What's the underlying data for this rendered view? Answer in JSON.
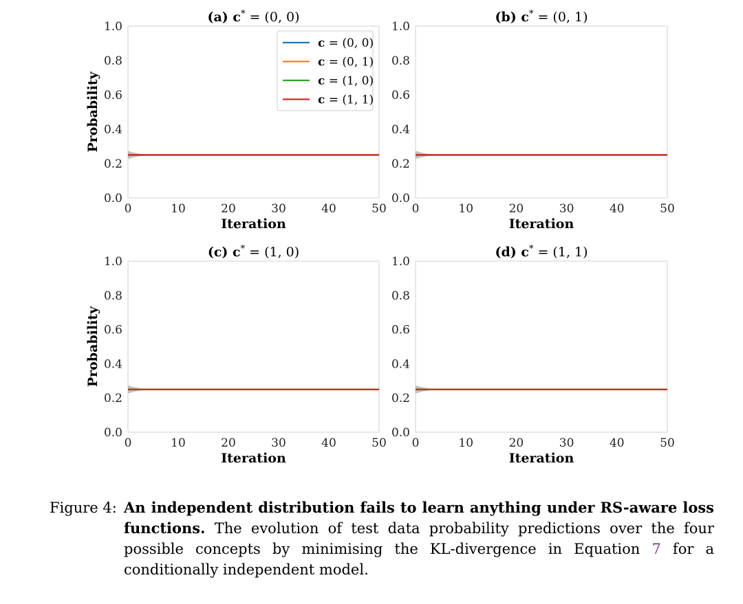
{
  "chart_data": [
    {
      "type": "line",
      "title": "(a) c* = (0, 0)",
      "title_parts": {
        "label": "(a)",
        "var": "c",
        "sup": "*",
        "rest": " = (0, 0)"
      },
      "xlabel": "Iteration",
      "ylabel": "Probability",
      "xlim": [
        0,
        50
      ],
      "ylim": [
        0,
        1
      ],
      "xticks": [
        "0",
        "10",
        "20",
        "30",
        "40",
        "50"
      ],
      "yticks": [
        "0.0",
        "0.2",
        "0.4",
        "0.6",
        "0.8",
        "1.0"
      ],
      "grid": true,
      "legend_position": "top-right",
      "series": [
        {
          "name": "c = (0, 0)",
          "name_rest": " = (0, 0)",
          "color": "#1f77b4",
          "x": [
            0,
            50
          ],
          "y": [
            0.25,
            0.25
          ]
        },
        {
          "name": "c = (0, 1)",
          "name_rest": " = (0, 1)",
          "color": "#ff7f0e",
          "x": [
            0,
            50
          ],
          "y": [
            0.25,
            0.25
          ]
        },
        {
          "name": "c = (1, 0)",
          "name_rest": " = (1, 0)",
          "color": "#2ca02c",
          "x": [
            0,
            50
          ],
          "y": [
            0.25,
            0.25
          ]
        },
        {
          "name": "c = (1, 1)",
          "name_rest": " = (1, 1)",
          "color": "#d62728",
          "x": [
            0,
            50
          ],
          "y": [
            0.25,
            0.25
          ]
        }
      ]
    },
    {
      "type": "line",
      "title": "(b) c* = (0, 1)",
      "title_parts": {
        "label": "(b)",
        "var": "c",
        "sup": "*",
        "rest": " = (0, 1)"
      },
      "xlabel": "Iteration",
      "ylabel": "",
      "xlim": [
        0,
        50
      ],
      "ylim": [
        0,
        1
      ],
      "xticks": [
        "0",
        "10",
        "20",
        "30",
        "40",
        "50"
      ],
      "yticks": [
        "0.0",
        "0.2",
        "0.4",
        "0.6",
        "0.8",
        "1.0"
      ],
      "grid": true,
      "series": [
        {
          "color": "#1f77b4",
          "x": [
            0,
            50
          ],
          "y": [
            0.25,
            0.25
          ]
        },
        {
          "color": "#ff7f0e",
          "x": [
            0,
            50
          ],
          "y": [
            0.25,
            0.25
          ]
        },
        {
          "color": "#2ca02c",
          "x": [
            0,
            50
          ],
          "y": [
            0.25,
            0.25
          ]
        },
        {
          "color": "#d62728",
          "x": [
            0,
            50
          ],
          "y": [
            0.25,
            0.25
          ]
        }
      ]
    },
    {
      "type": "line",
      "title": "(c) c* = (1, 0)",
      "title_parts": {
        "label": "(c)",
        "var": "c",
        "sup": "*",
        "rest": " = (1, 0)"
      },
      "xlabel": "Iteration",
      "ylabel": "Probability",
      "xlim": [
        0,
        50
      ],
      "ylim": [
        0,
        1
      ],
      "xticks": [
        "0",
        "10",
        "20",
        "30",
        "40",
        "50"
      ],
      "yticks": [
        "0.0",
        "0.2",
        "0.4",
        "0.6",
        "0.8",
        "1.0"
      ],
      "grid": true,
      "series": [
        {
          "color": "#1f77b4",
          "x": [
            0,
            50
          ],
          "y": [
            0.25,
            0.25
          ]
        },
        {
          "color": "#ff7f0e",
          "x": [
            0,
            50
          ],
          "y": [
            0.25,
            0.25
          ]
        },
        {
          "color": "#2ca02c",
          "x": [
            0,
            50
          ],
          "y": [
            0.25,
            0.25
          ]
        },
        {
          "color": "#d62728",
          "x": [
            0,
            50
          ],
          "y": [
            0.25,
            0.25
          ]
        }
      ]
    },
    {
      "type": "line",
      "title": "(d) c* = (1, 1)",
      "title_parts": {
        "label": "(d)",
        "var": "c",
        "sup": "*",
        "rest": " = (1, 1)"
      },
      "xlabel": "Iteration",
      "ylabel": "",
      "xlim": [
        0,
        50
      ],
      "ylim": [
        0,
        1
      ],
      "xticks": [
        "0",
        "10",
        "20",
        "30",
        "40",
        "50"
      ],
      "yticks": [
        "0.0",
        "0.2",
        "0.4",
        "0.6",
        "0.8",
        "1.0"
      ],
      "grid": true,
      "series": [
        {
          "color": "#1f77b4",
          "x": [
            0,
            50
          ],
          "y": [
            0.25,
            0.25
          ]
        },
        {
          "color": "#ff7f0e",
          "x": [
            0,
            50
          ],
          "y": [
            0.25,
            0.25
          ]
        },
        {
          "color": "#2ca02c",
          "x": [
            0,
            50
          ],
          "y": [
            0.25,
            0.25
          ]
        },
        {
          "color": "#d62728",
          "x": [
            0,
            50
          ],
          "y": [
            0.25,
            0.25
          ]
        }
      ]
    }
  ],
  "caption": {
    "label": "Figure 4:",
    "bold": "An independent distribution fails to learn anything under RS-aware loss functions.",
    "text_before_ref": " The evolution of test data probability predictions over the four possible concepts by minimising the KL-divergence in Equation ",
    "ref": "7",
    "text_after_ref": " for a conditionally independent model."
  },
  "style": {
    "axis_color": "#d9d9d9",
    "band_color": "#9a9a9a",
    "ref_color": "#7b3f93"
  }
}
